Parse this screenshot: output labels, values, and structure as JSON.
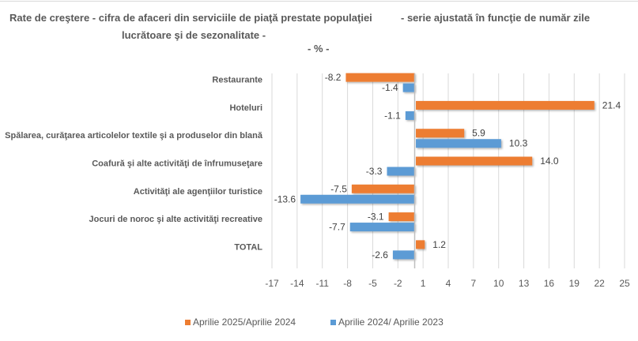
{
  "chart_data": {
    "type": "bar",
    "orientation": "horizontal",
    "title_line1": "Rate de creştere - cifra de afaceri din serviciile de piaţă prestate populaţiei",
    "title_line1b": "- serie ajustată în funcţie de număr zile",
    "title_line2": "lucrătoare şi de sezonalitate -",
    "subtitle": "- % -",
    "categories": [
      "Restaurante",
      "Hoteluri",
      "Spălarea, curăţarea articolelor textile şi a produselor din blană",
      "Coafură şi alte activităţi de înfrumuseţare",
      "Activităţi ale agenţiilor turistice",
      "Jocuri de noroc şi alte activităţi recreative",
      "TOTAL"
    ],
    "series": [
      {
        "name": "Aprilie 2025/Aprilie 2024",
        "color": "#ED7D31",
        "values": [
          -8.2,
          21.4,
          5.9,
          14.0,
          -7.5,
          -3.1,
          1.2
        ],
        "labels": [
          "-8.2",
          "21.4",
          "5.9",
          "14.0",
          "-7.5",
          "-3.1",
          "1.2"
        ]
      },
      {
        "name": "Aprilie 2024/ Aprilie 2023",
        "color": "#5B9BD5",
        "values": [
          -1.4,
          -1.1,
          10.3,
          -3.3,
          -13.6,
          -7.7,
          -2.6
        ],
        "labels": [
          "-1.4",
          "-1.1",
          "10.3",
          "-3.3",
          "-13.6",
          "-7.7",
          "-2.6"
        ]
      }
    ],
    "xlim": [
      -17,
      25
    ],
    "xticks": [
      "-17",
      "-14",
      "-11",
      "-8",
      "-5",
      "-2",
      "1",
      "4",
      "7",
      "10",
      "13",
      "16",
      "19",
      "22",
      "25"
    ],
    "xlabel": "",
    "ylabel": "",
    "grid": "vertical",
    "legend": "bottom"
  }
}
